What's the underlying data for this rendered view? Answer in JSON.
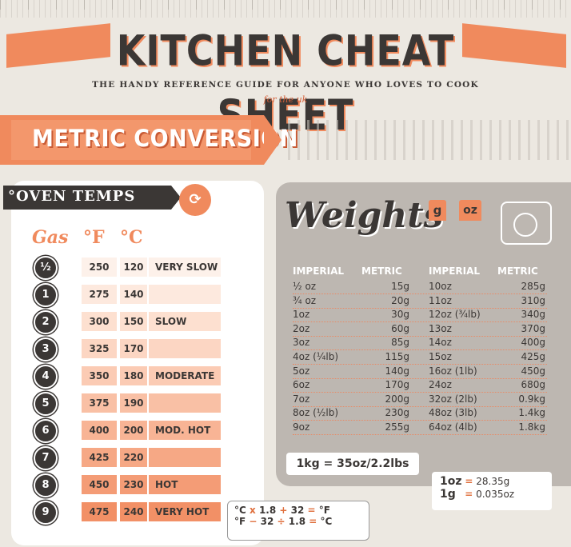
{
  "header": {
    "title": "KITCHEN CHEAT SHEET",
    "subtitle": "THE HANDY REFERENCE GUIDE FOR ANYONE WHO LOVES TO COOK",
    "tagline": "for the uk"
  },
  "section_title": "METRIC CONVERSION",
  "oven": {
    "title": "OVEN TEMPS",
    "title_prefix": "°",
    "headers": {
      "gas": "Gas",
      "f": "°F",
      "c": "°C"
    },
    "rows": [
      {
        "gas": "½",
        "f": "250",
        "c": "120",
        "desc": "VERY SLOW",
        "shade": "#fdf1ea"
      },
      {
        "gas": "1",
        "f": "275",
        "c": "140",
        "desc": "",
        "shade": "#fde9de"
      },
      {
        "gas": "2",
        "f": "300",
        "c": "150",
        "desc": "SLOW",
        "shade": "#fde0d0"
      },
      {
        "gas": "3",
        "f": "325",
        "c": "170",
        "desc": "",
        "shade": "#fcd6c3"
      },
      {
        "gas": "4",
        "f": "350",
        "c": "180",
        "desc": "MODERATE",
        "shade": "#fbcbb4"
      },
      {
        "gas": "5",
        "f": "375",
        "c": "190",
        "desc": "",
        "shade": "#f9c0a5"
      },
      {
        "gas": "6",
        "f": "400",
        "c": "200",
        "desc": "MOD. HOT",
        "shade": "#f8b495"
      },
      {
        "gas": "7",
        "f": "425",
        "c": "220",
        "desc": "",
        "shade": "#f6a885"
      },
      {
        "gas": "8",
        "f": "450",
        "c": "230",
        "desc": "HOT",
        "shade": "#f49c76"
      },
      {
        "gas": "9",
        "f": "475",
        "c": "240",
        "desc": "VERY HOT",
        "shade": "#f29066"
      }
    ]
  },
  "formula": {
    "line1": {
      "a": "°C",
      "op1": "x",
      "b": "1.8",
      "op2": "+",
      "c": "32",
      "op3": "=",
      "d": "°F"
    },
    "line2": {
      "a": "°F",
      "op1": "−",
      "b": "32",
      "op2": "÷",
      "c": "1.8",
      "op3": "=",
      "d": "°C"
    }
  },
  "weights": {
    "title": "Weights",
    "tag_g": "g",
    "tag_oz": "oz",
    "headers": [
      "IMPERIAL",
      "METRIC",
      "IMPERIAL",
      "METRIC"
    ],
    "rows": [
      [
        "½ oz",
        "15g",
        "10oz",
        "285g"
      ],
      [
        "¾ oz",
        "20g",
        "11oz",
        "310g"
      ],
      [
        "1oz",
        "30g",
        "12oz (¾lb)",
        "340g"
      ],
      [
        "2oz",
        "60g",
        "13oz",
        "370g"
      ],
      [
        "3oz",
        "85g",
        "14oz",
        "400g"
      ],
      [
        "4oz (¼lb)",
        "115g",
        "15oz",
        "425g"
      ],
      [
        "5oz",
        "140g",
        "16oz (1lb)",
        "450g"
      ],
      [
        "6oz",
        "170g",
        "24oz",
        "680g"
      ],
      [
        "7oz",
        "200g",
        "32oz (2lb)",
        "0.9kg"
      ],
      [
        "8oz (½lb)",
        "230g",
        "48oz (3lb)",
        "1.4kg"
      ],
      [
        "9oz",
        "255g",
        "64oz (4lb)",
        "1.8kg"
      ]
    ],
    "kg_note": "1kg = 35oz/2.2lbs",
    "oz_note": {
      "l1_unit": "1oz",
      "l1_eq": "=",
      "l1_val": "28.35g",
      "l2_unit": "1g",
      "l2_eq": "=",
      "l2_val": "0.035oz"
    }
  },
  "colors": {
    "accent": "#f08a5d",
    "dark": "#3b3735",
    "panel": "#bdb7b1",
    "background": "#ece8e1"
  }
}
